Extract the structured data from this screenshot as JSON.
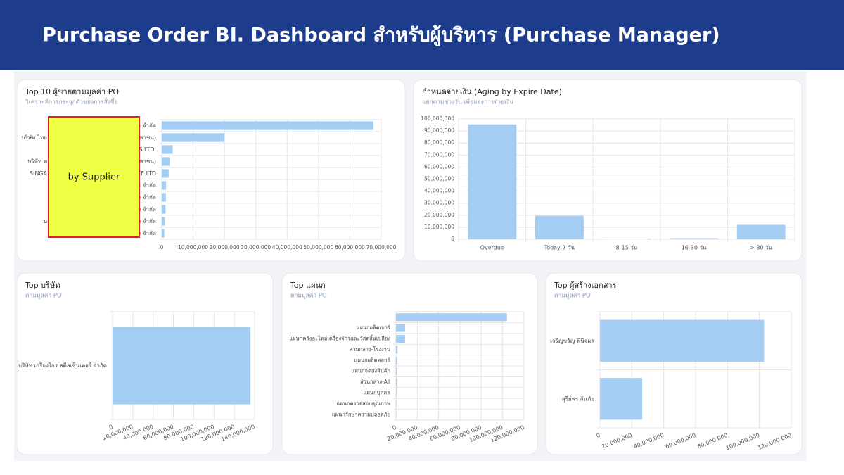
{
  "header": {
    "title": "Purchase Order BI. Dashboard สำหรับผู้บริหาร (Purchase Manager)"
  },
  "overlay": {
    "label": "by Supplier"
  },
  "chart_data": [
    {
      "type": "hbar",
      "title": "Top 10 ผู้ขายตามมูลค่า PO",
      "subtitle": "วิเคราะห์การกระจุกตัวของการสั่งซื้อ",
      "categories": [
        "ะ จำกัด",
        "(มหาชน)",
        "S  LTD.",
        "(มหาชน)",
        "TE.LTD",
        "ะ จำกัด",
        ") จำกัด",
        "ว จำกัด",
        "ย จำกัด",
        ") จำกัด"
      ],
      "label_prefixes": [
        null,
        "บริษัท ไทย",
        null,
        "บริษัท ท",
        "SINGA",
        null,
        null,
        null,
        "บ",
        null
      ],
      "values": [
        67500000,
        20000000,
        3500000,
        2500000,
        2200000,
        1400000,
        1300000,
        1200000,
        1000000,
        800000
      ],
      "color": "#a3cdf3",
      "grid": true,
      "xlim": [
        0,
        70000000
      ],
      "xticks": [
        0,
        {
          "value": 10000000,
          "label": "10,000,000"
        },
        {
          "value": 20000000,
          "label": "20,000,000"
        },
        {
          "value": 30000000,
          "label": "30,000,000"
        },
        {
          "value": 40000000,
          "label": "40,000,000"
        },
        {
          "value": 50000000,
          "label": "50,000,000"
        },
        {
          "value": 60000000,
          "label": "60,000,000"
        },
        {
          "value": 70000000,
          "label": "70,000,000"
        }
      ]
    },
    {
      "type": "bar",
      "title": "กำหนดจ่ายเงิน (Aging by Expire Date)",
      "subtitle": "แยกตามช่วงวัน เพื่อมองการจ่ายเงิน",
      "categories": [
        "Overdue",
        "Today-7 วัน",
        "8-15 วัน",
        "16-30 วัน",
        "> 30 วัน"
      ],
      "values": [
        95500000,
        19500000,
        500000,
        800000,
        12000000
      ],
      "color": "#a3cdf3",
      "grid": true,
      "ylim": [
        0,
        100000000
      ],
      "yticks": [
        0,
        {
          "value": 10000000,
          "label": "10,000,000"
        },
        {
          "value": 20000000,
          "label": "20,000,000"
        },
        {
          "value": 30000000,
          "label": "30,000,000"
        },
        {
          "value": 40000000,
          "label": "40,000,000"
        },
        {
          "value": 50000000,
          "label": "50,000,000"
        },
        {
          "value": 60000000,
          "label": "60,000,000"
        },
        {
          "value": 70000000,
          "label": "70,000,000"
        },
        {
          "value": 80000000,
          "label": "80,000,000"
        },
        {
          "value": 90000000,
          "label": "90,000,000"
        },
        {
          "value": 100000000,
          "label": "100,000,000"
        }
      ]
    },
    {
      "type": "hbar",
      "title": "Top บริษัท",
      "subtitle": "ตามมูลค่า PO",
      "categories": [
        "บริษัท เกรียงไกร สตีลเซ็นเตอร์ จำกัด"
      ],
      "values": [
        136000000
      ],
      "color": "#a3cdf3",
      "grid": true,
      "xlim": [
        0,
        140000000
      ],
      "xticks": [
        0,
        {
          "value": 20000000,
          "label": "20,000,000"
        },
        {
          "value": 40000000,
          "label": "40,000,000"
        },
        {
          "value": 60000000,
          "label": "60,000,000"
        },
        {
          "value": 80000000,
          "label": "80,000,000"
        },
        {
          "value": 100000000,
          "label": "100,000,000"
        },
        {
          "value": 120000000,
          "label": "120,000,000"
        },
        {
          "value": 140000000,
          "label": "140,000,000"
        }
      ]
    },
    {
      "type": "hbar",
      "title": "Top แผนก",
      "subtitle": "ตามมูลค่า PO",
      "categories": [
        null,
        "แผนกผลิตเบาร์",
        "แผนกคลังอะไหล่เครื่องจักรและวัสดุสิ้นเปลือง",
        "ส่วนกลาง-โรงงาน",
        "แผนกผลิตคอยล์",
        "แผนกจัดส่งสินค้า",
        "ส่วนกลาง-All",
        "แผนกบุคคล",
        "แผนกตรวจสอบคุณภาพ",
        "แผนกรักษาความปลอดภัย"
      ],
      "values": [
        104000000,
        8600000,
        8500000,
        1500000,
        1100000,
        900000,
        700000,
        500000,
        400000,
        300000
      ],
      "color": "#a3cdf3",
      "grid": true,
      "xlim": [
        0,
        120000000
      ],
      "xticks": [
        0,
        {
          "value": 20000000,
          "label": "20,000,000"
        },
        {
          "value": 40000000,
          "label": "40,000,000"
        },
        {
          "value": 60000000,
          "label": "60,000,000"
        },
        {
          "value": 80000000,
          "label": "80,000,000"
        },
        {
          "value": 100000000,
          "label": "100,000,000"
        },
        {
          "value": 120000000,
          "label": "120,000,000"
        }
      ]
    },
    {
      "type": "hbar",
      "title": "Top ผู้สร้างเอกสาร",
      "subtitle": "ตามมูลค่า PO",
      "categories": [
        "เจริญขวัญ พินิจผล",
        "สุรีย์พร กันภัย"
      ],
      "values": [
        103000000,
        26500000
      ],
      "color": "#a3cdf3",
      "grid": true,
      "xlim": [
        0,
        120000000
      ],
      "xticks": [
        0,
        {
          "value": 20000000,
          "label": "20,000,000"
        },
        {
          "value": 40000000,
          "label": "40,000,000"
        },
        {
          "value": 60000000,
          "label": "60,000,000"
        },
        {
          "value": 80000000,
          "label": "80,000,000"
        },
        {
          "value": 100000000,
          "label": "100,000,000"
        },
        {
          "value": 120000000,
          "label": "120,000,000"
        }
      ]
    }
  ]
}
